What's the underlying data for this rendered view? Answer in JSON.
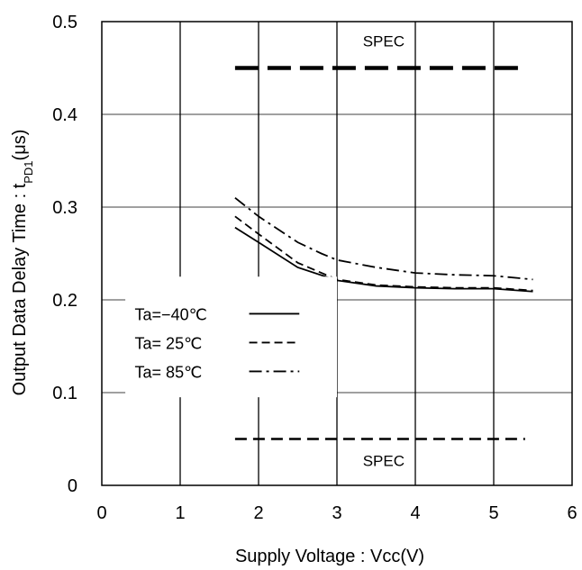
{
  "chart_data": {
    "type": "line",
    "title": "",
    "xlabel": "Supply Voltage : Vcc(V)",
    "ylabel": {
      "main": "Output Data Delay Time : t",
      "subscript": "PD1",
      "unit": "(μs)"
    },
    "xlim": [
      0,
      6
    ],
    "ylim": [
      0,
      0.5
    ],
    "xticks": [
      0,
      1,
      2,
      3,
      4,
      5,
      6
    ],
    "xtick_labels": [
      "0",
      "1",
      "2",
      "3",
      "4",
      "5",
      "6"
    ],
    "yticks": [
      0,
      0.1,
      0.2,
      0.3,
      0.4,
      0.5
    ],
    "ytick_labels": [
      "0",
      "0.1",
      "0.2",
      "0.3",
      "0.4",
      "0.5"
    ],
    "grid": true,
    "legend_position": "left",
    "series": [
      {
        "name": "Ta=−40℃",
        "style": "solid",
        "x": [
          1.7,
          2.0,
          2.5,
          3.0,
          3.5,
          4.0,
          4.5,
          5.0,
          5.5
        ],
        "y": [
          0.278,
          0.262,
          0.235,
          0.221,
          0.215,
          0.213,
          0.212,
          0.212,
          0.209
        ]
      },
      {
        "name": "Ta= 25℃",
        "style": "dashed",
        "x": [
          1.7,
          2.0,
          2.5,
          3.0,
          3.5,
          4.0,
          4.5,
          5.0,
          5.5
        ],
        "y": [
          0.29,
          0.271,
          0.24,
          0.222,
          0.216,
          0.214,
          0.213,
          0.213,
          0.21
        ]
      },
      {
        "name": "Ta= 85℃",
        "style": "dashdot",
        "x": [
          1.7,
          2.0,
          2.5,
          2.8,
          3.0,
          3.5,
          4.0,
          4.5,
          5.0,
          5.5
        ],
        "y": [
          0.31,
          0.29,
          0.262,
          0.25,
          0.243,
          0.235,
          0.229,
          0.227,
          0.226,
          0.222
        ]
      }
    ],
    "spec_lines": [
      {
        "label": "SPEC",
        "y": 0.45,
        "x": [
          1.7,
          5.4
        ]
      },
      {
        "label": "SPEC",
        "y": 0.05,
        "x": [
          1.7,
          5.4
        ]
      }
    ]
  }
}
